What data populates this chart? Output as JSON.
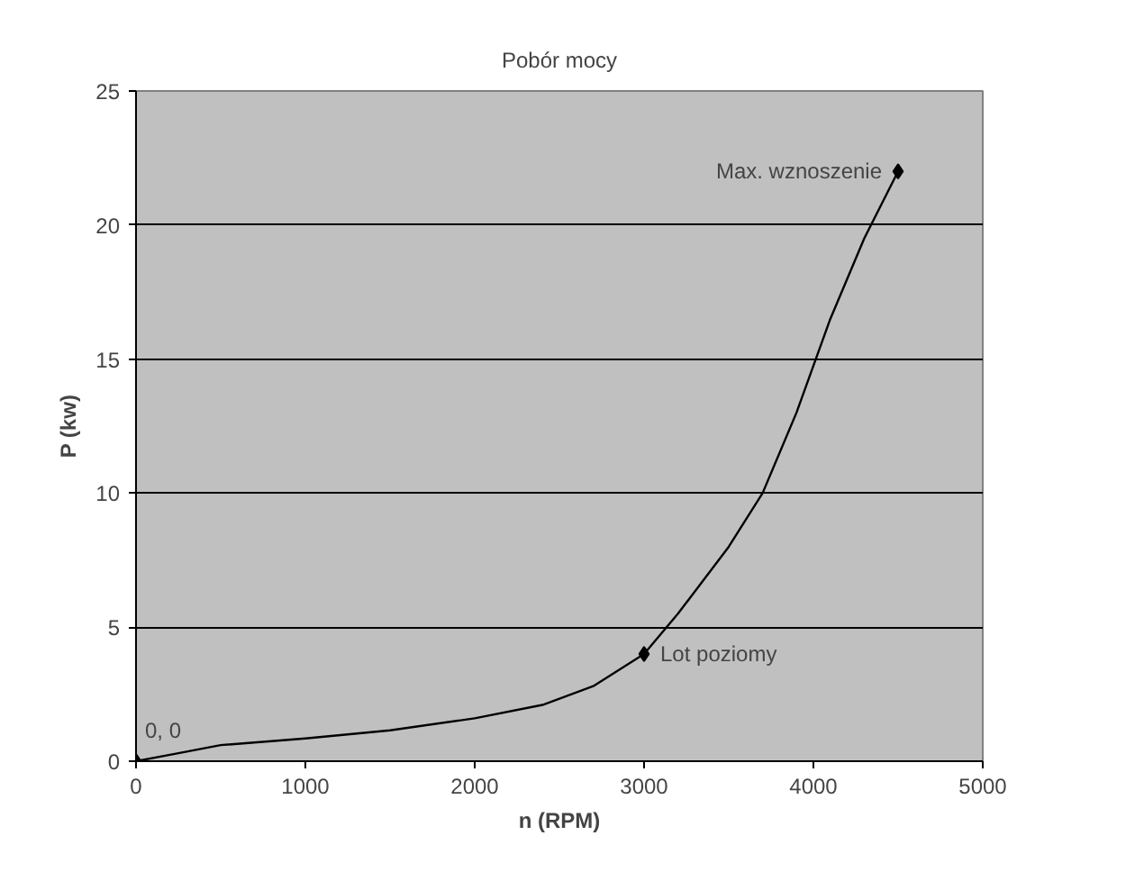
{
  "chart_data": {
    "type": "line",
    "title": "Pobór mocy",
    "xlabel": "n (RPM)",
    "ylabel": "P (kw)",
    "series": [
      {
        "color": "#000000",
        "marker": "none",
        "x": [
          0,
          250,
          500,
          1000,
          1500,
          2000,
          2400,
          2700,
          3000,
          3200,
          3500,
          3700,
          3900,
          4100,
          4300,
          4500
        ],
        "values": [
          0,
          0.3,
          0.6,
          0.85,
          1.15,
          1.6,
          2.1,
          2.8,
          4,
          5.5,
          8,
          10,
          13,
          16.5,
          19.5,
          22
        ]
      },
      {
        "type": "scatter",
        "color": "#000000",
        "marker": "diamond",
        "x": [
          0,
          3000,
          4500
        ],
        "values": [
          0,
          4,
          22
        ]
      }
    ],
    "line_style": "solid",
    "xlim": [
      0,
      5000
    ],
    "xticks": [
      0,
      1000,
      2000,
      3000,
      4000,
      5000
    ],
    "ylim": [
      0,
      25
    ],
    "yticks": [
      0,
      5,
      10,
      15,
      20,
      25
    ],
    "grid": "y",
    "annotations": [
      {
        "text": "0, 0",
        "x": 0,
        "y": 0
      },
      {
        "text": "Lot poziomy",
        "x": 3000,
        "y": 4
      },
      {
        "text": "Max. wznoszenie",
        "x": 4500,
        "y": 22
      }
    ]
  }
}
